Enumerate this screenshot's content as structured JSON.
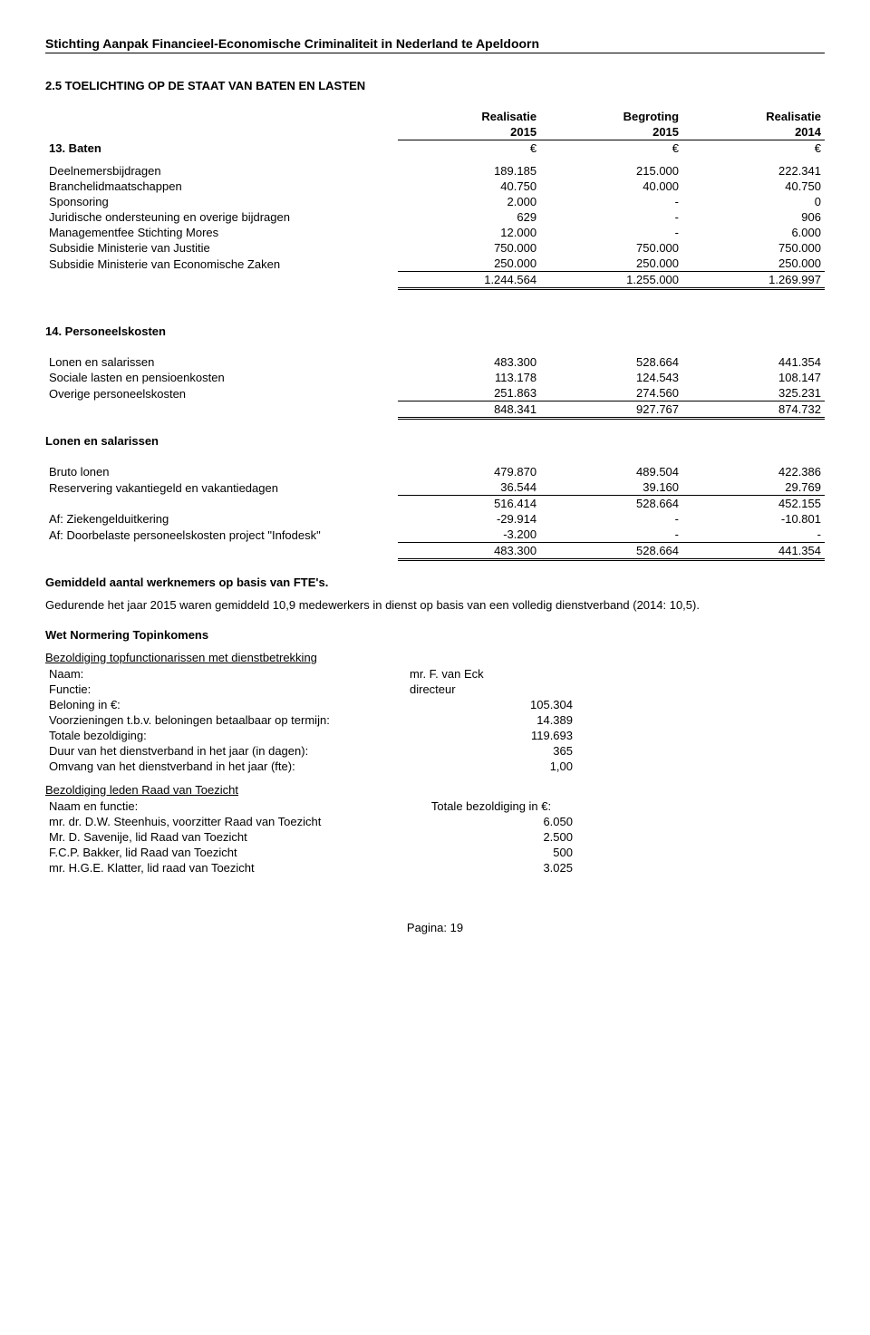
{
  "header": "Stichting Aanpak Financieel-Economische Criminaliteit in Nederland  te Apeldoorn",
  "main_title": "2.5 TOELICHTING OP DE STAAT VAN BATEN EN LASTEN",
  "col_headers": {
    "c1a": "Realisatie",
    "c1b": "2015",
    "c1c": "€",
    "c2a": "Begroting",
    "c2b": "2015",
    "c2c": "€",
    "c3a": "Realisatie",
    "c3b": "2014",
    "c3c": "€"
  },
  "section13": "13. Baten",
  "baten": {
    "rows": [
      {
        "l": "Deelnemersbijdragen",
        "a": "189.185",
        "b": "215.000",
        "c": "222.341"
      },
      {
        "l": "Branchelidmaatschappen",
        "a": "40.750",
        "b": "40.000",
        "c": "40.750"
      },
      {
        "l": "Sponsoring",
        "a": "2.000",
        "b": "-",
        "c": "0"
      },
      {
        "l": "Juridische ondersteuning en overige bijdragen",
        "a": "629",
        "b": "-",
        "c": "906"
      },
      {
        "l": "Managementfee Stichting Mores",
        "a": "12.000",
        "b": "-",
        "c": "6.000"
      },
      {
        "l": "Subsidie Ministerie van Justitie",
        "a": "750.000",
        "b": "750.000",
        "c": "750.000"
      },
      {
        "l": "Subsidie Ministerie van Economische Zaken",
        "a": "250.000",
        "b": "250.000",
        "c": "250.000"
      }
    ],
    "total": {
      "a": "1.244.564",
      "b": "1.255.000",
      "c": "1.269.997"
    }
  },
  "section14": "14. Personeelskosten",
  "personeel": {
    "rows": [
      {
        "l": "Lonen en salarissen",
        "a": "483.300",
        "b": "528.664",
        "c": "441.354"
      },
      {
        "l": "Sociale lasten en pensioenkosten",
        "a": "113.178",
        "b": "124.543",
        "c": "108.147"
      },
      {
        "l": "Overige personeelskosten",
        "a": "251.863",
        "b": "274.560",
        "c": "325.231"
      }
    ],
    "total": {
      "a": "848.341",
      "b": "927.767",
      "c": "874.732"
    }
  },
  "lonen_title": "Lonen en salarissen",
  "lonen": {
    "rows": [
      {
        "l": "Bruto lonen",
        "a": "479.870",
        "b": "489.504",
        "c": "422.386"
      },
      {
        "l": "Reservering vakantiegeld en vakantiedagen",
        "a": "36.544",
        "b": "39.160",
        "c": "29.769"
      }
    ],
    "sub": {
      "a": "516.414",
      "b": "528.664",
      "c": "452.155"
    },
    "rows2": [
      {
        "l": "Af: Ziekengelduitkering",
        "a": "-29.914",
        "b": "-",
        "c": "-10.801"
      },
      {
        "l": "Af: Doorbelaste personeelskosten project \"Infodesk\"",
        "a": "-3.200",
        "b": "-",
        "c": "-"
      }
    ],
    "total": {
      "a": "483.300",
      "b": "528.664",
      "c": "441.354"
    }
  },
  "fte_title": "Gemiddeld aantal werknemers op basis van FTE's.",
  "fte_text": "Gedurende het jaar 2015 waren gemiddeld 10,9 medewerkers in dienst op basis van een volledig dienstverband (2014: 10,5).",
  "wnt_title": "Wet Normering Topinkomens",
  "bezold_top_title": "Bezoldiging topfunctionarissen met dienstbetrekking",
  "top": [
    {
      "l": "Naam:",
      "v": "mr. F. van Eck",
      "align": "left"
    },
    {
      "l": "Functie:",
      "v": "directeur",
      "align": "left"
    },
    {
      "l": "Beloning in €:",
      "v": "105.304",
      "align": "right"
    },
    {
      "l": "Voorzieningen t.b.v. beloningen betaalbaar op termijn:",
      "v": "14.389",
      "align": "right"
    },
    {
      "l": "Totale bezoldiging:",
      "v": "119.693",
      "align": "right"
    },
    {
      "l": "Duur van het dienstverband in het jaar (in dagen):",
      "v": "365",
      "align": "right"
    },
    {
      "l": "Omvang van het dienstverband in het jaar (fte):",
      "v": "1,00",
      "align": "right"
    }
  ],
  "bezold_rvt_title": "Bezoldiging leden Raad van Toezicht",
  "rvt_header": {
    "l": "Naam en functie:",
    "v": "Totale bezoldiging in €:"
  },
  "rvt": [
    {
      "l": "mr. dr. D.W. Steenhuis, voorzitter Raad van Toezicht",
      "v": "6.050"
    },
    {
      "l": "Mr. D. Savenije, lid Raad van Toezicht",
      "v": "2.500"
    },
    {
      "l": "F.C.P. Bakker, lid Raad van Toezicht",
      "v": "500"
    },
    {
      "l": "mr. H.G.E. Klatter, lid raad van Toezicht",
      "v": "3.025"
    }
  ],
  "footer": "Pagina: 19"
}
